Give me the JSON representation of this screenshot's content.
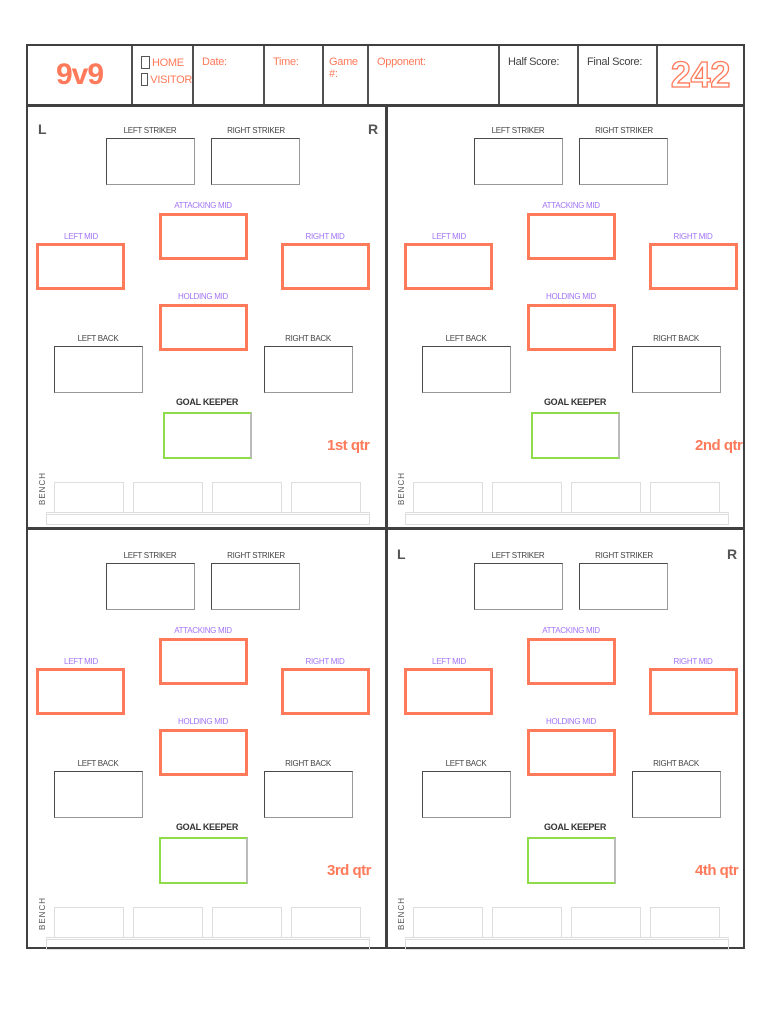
{
  "header": {
    "title": "9v9",
    "home": "HOME",
    "visitor": "VISITOR",
    "date": "Date:",
    "time": "Time:",
    "game": "Game #:",
    "opponent": "Opponent:",
    "half_score": "Half Score:",
    "final_score": "Final Score:",
    "logo": "242"
  },
  "positions": {
    "left_striker": "LEFT STRIKER",
    "right_striker": "RIGHT STRIKER",
    "attacking_mid": "ATTACKING MID",
    "left_mid": "LEFT MID",
    "right_mid": "RIGHT MID",
    "holding_mid": "HOLDING MID",
    "left_back": "LEFT BACK",
    "right_back": "RIGHT BACK",
    "goal_keeper": "GOAL KEEPER",
    "bench": "BENCH",
    "left": "L",
    "right": "R"
  },
  "quarters": [
    {
      "label": "1st qtr",
      "show_sides": true
    },
    {
      "label": "2nd qtr",
      "show_sides": false
    },
    {
      "label": "3rd qtr",
      "show_sides": false
    },
    {
      "label": "4th qtr",
      "show_sides": true
    }
  ],
  "colors": {
    "accent": "#ff7a5a",
    "mid_label": "#a274f5",
    "keeper": "#8fdc4a",
    "frame": "#404040"
  }
}
